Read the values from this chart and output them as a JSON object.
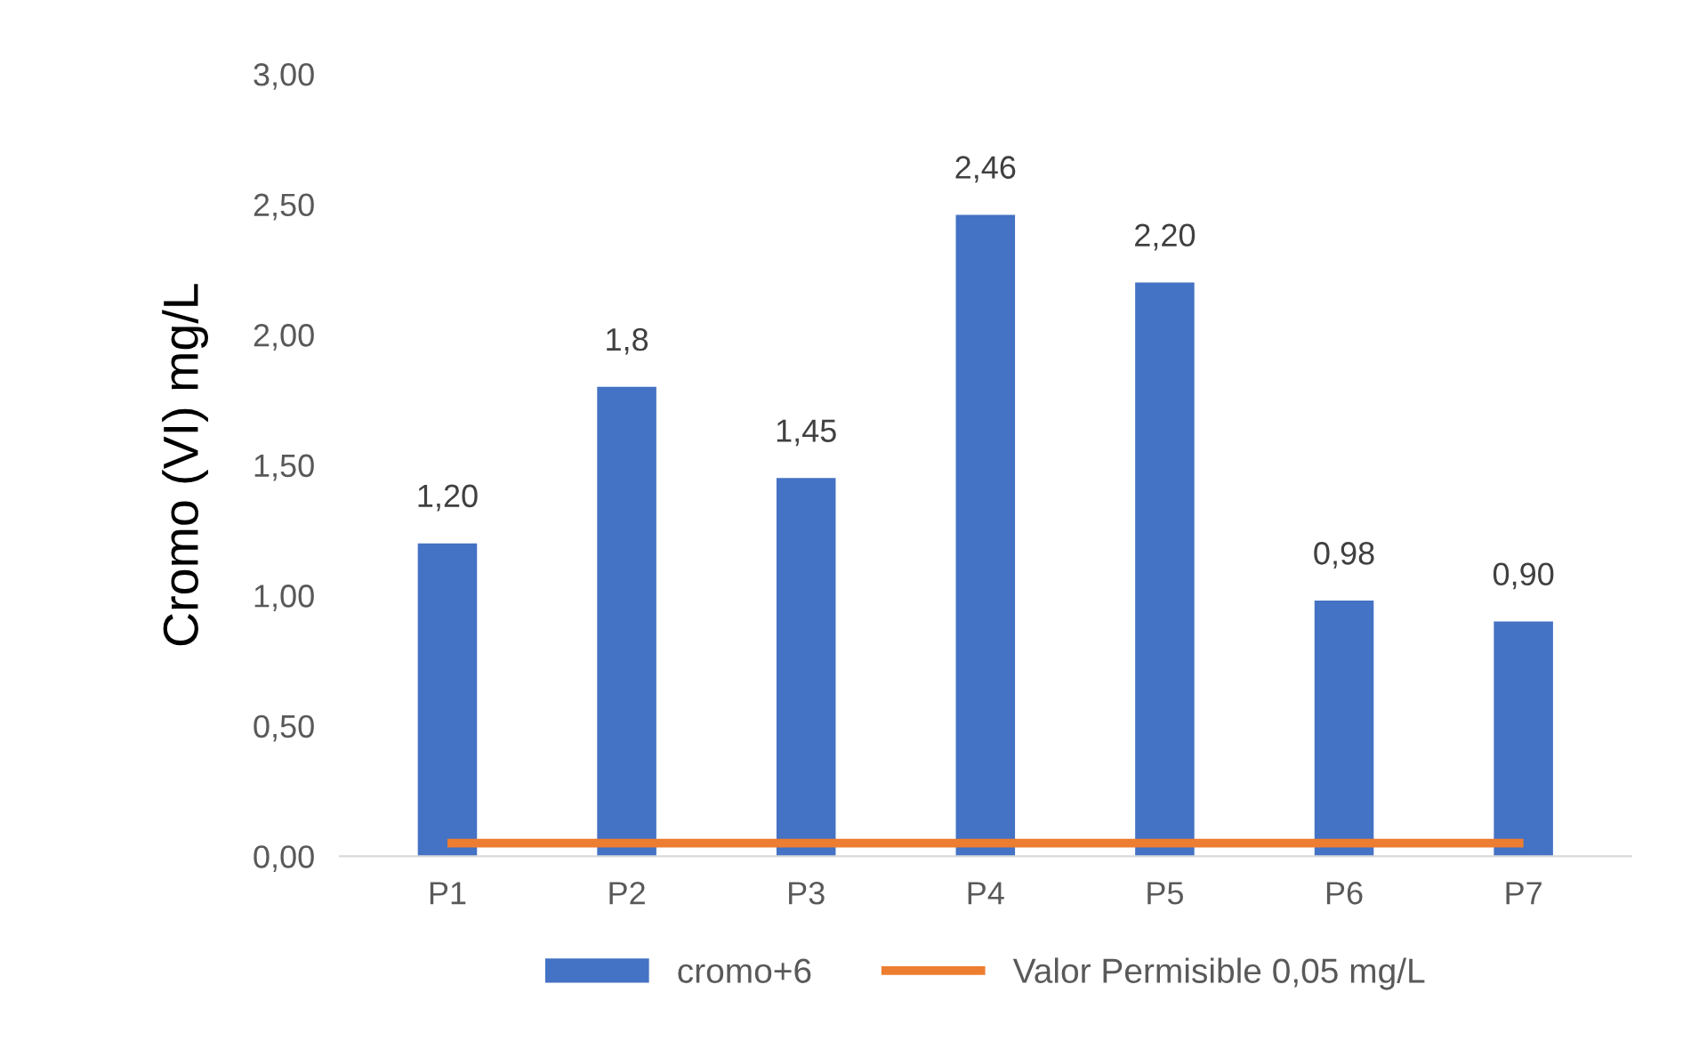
{
  "chart_data": {
    "type": "bar",
    "ylabel": "Cromo (VI) mg/L",
    "categories": [
      "P1",
      "P2",
      "P3",
      "P4",
      "P5",
      "P6",
      "P7"
    ],
    "series": [
      {
        "name": "cromo+6",
        "color": "#4472c4",
        "values": [
          1.2,
          1.8,
          1.45,
          2.46,
          2.2,
          0.98,
          0.9
        ],
        "value_labels": [
          "1,20",
          "1,8",
          "1,45",
          "2,46",
          "2,20",
          "0,98",
          "0,90"
        ]
      },
      {
        "name": "Valor Permisible 0,05 mg/L",
        "type": "line",
        "color": "#ed7d31",
        "values": [
          0.05,
          0.05,
          0.05,
          0.05,
          0.05,
          0.05,
          0.05
        ]
      }
    ],
    "ylim": [
      0,
      3
    ],
    "yticks": [
      {
        "value": 0,
        "label": "0,00"
      },
      {
        "value": 0.5,
        "label": "0,50"
      },
      {
        "value": 1,
        "label": "1,00"
      },
      {
        "value": 1.5,
        "label": "1,50"
      },
      {
        "value": 2,
        "label": "2,00"
      },
      {
        "value": 2.5,
        "label": "2,50"
      },
      {
        "value": 3,
        "label": "3,00"
      }
    ],
    "grid": false,
    "legend": "bottom",
    "marker": "none",
    "line_style": "solid"
  }
}
